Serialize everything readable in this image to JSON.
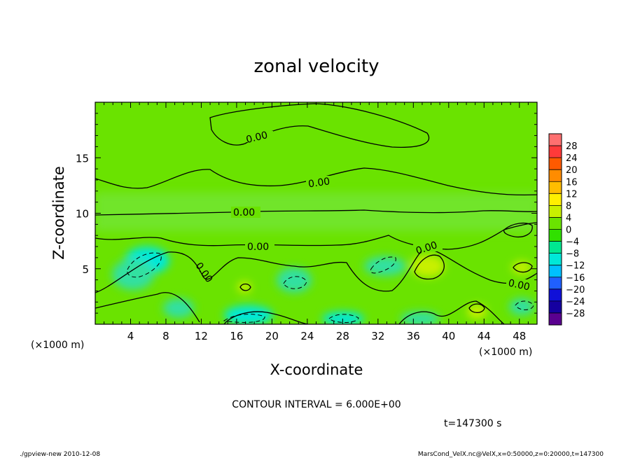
{
  "chart_data": {
    "type": "heatmap",
    "title": "zonal velocity",
    "xlabel": "X-coordinate",
    "ylabel": "Z-coordinate",
    "x_unit": "(×1000 m)",
    "y_unit": "(×1000 m)",
    "xlim": [
      0,
      50
    ],
    "ylim": [
      0,
      20
    ],
    "x_ticks": [
      "4",
      "8",
      "12",
      "16",
      "20",
      "24",
      "28",
      "32",
      "36",
      "40",
      "44",
      "48"
    ],
    "y_ticks": [
      "5",
      "10",
      "15"
    ],
    "contour_interval_text": "CONTOUR INTERVAL = 6.000E+00",
    "time_text": "t=147300 s",
    "contour_labels": [
      "0.00",
      "0.00",
      "0.00",
      "0.00",
      "0.00",
      "0.00",
      "0.00"
    ],
    "colorbar": {
      "levels": [
        "28",
        "24",
        "20",
        "16",
        "12",
        "8",
        "4",
        "0",
        "−4",
        "−8",
        "−12",
        "−16",
        "−20",
        "−24",
        "−28"
      ],
      "colors": [
        "#ff7070",
        "#ff3a3a",
        "#ff5a00",
        "#ff8c00",
        "#ffbd00",
        "#ffef00",
        "#c8f000",
        "#6ae300",
        "#30e000",
        "#00e890",
        "#00e8d8",
        "#00c0ff",
        "#2060ff",
        "#1010d8",
        "#1500a0",
        "#5a0090"
      ]
    },
    "footer_left": "./gpview-new   2010-12-08",
    "footer_right": "MarsCond_VelX.nc@VelX,x=0:50000,z=0:20000,t=147300"
  }
}
